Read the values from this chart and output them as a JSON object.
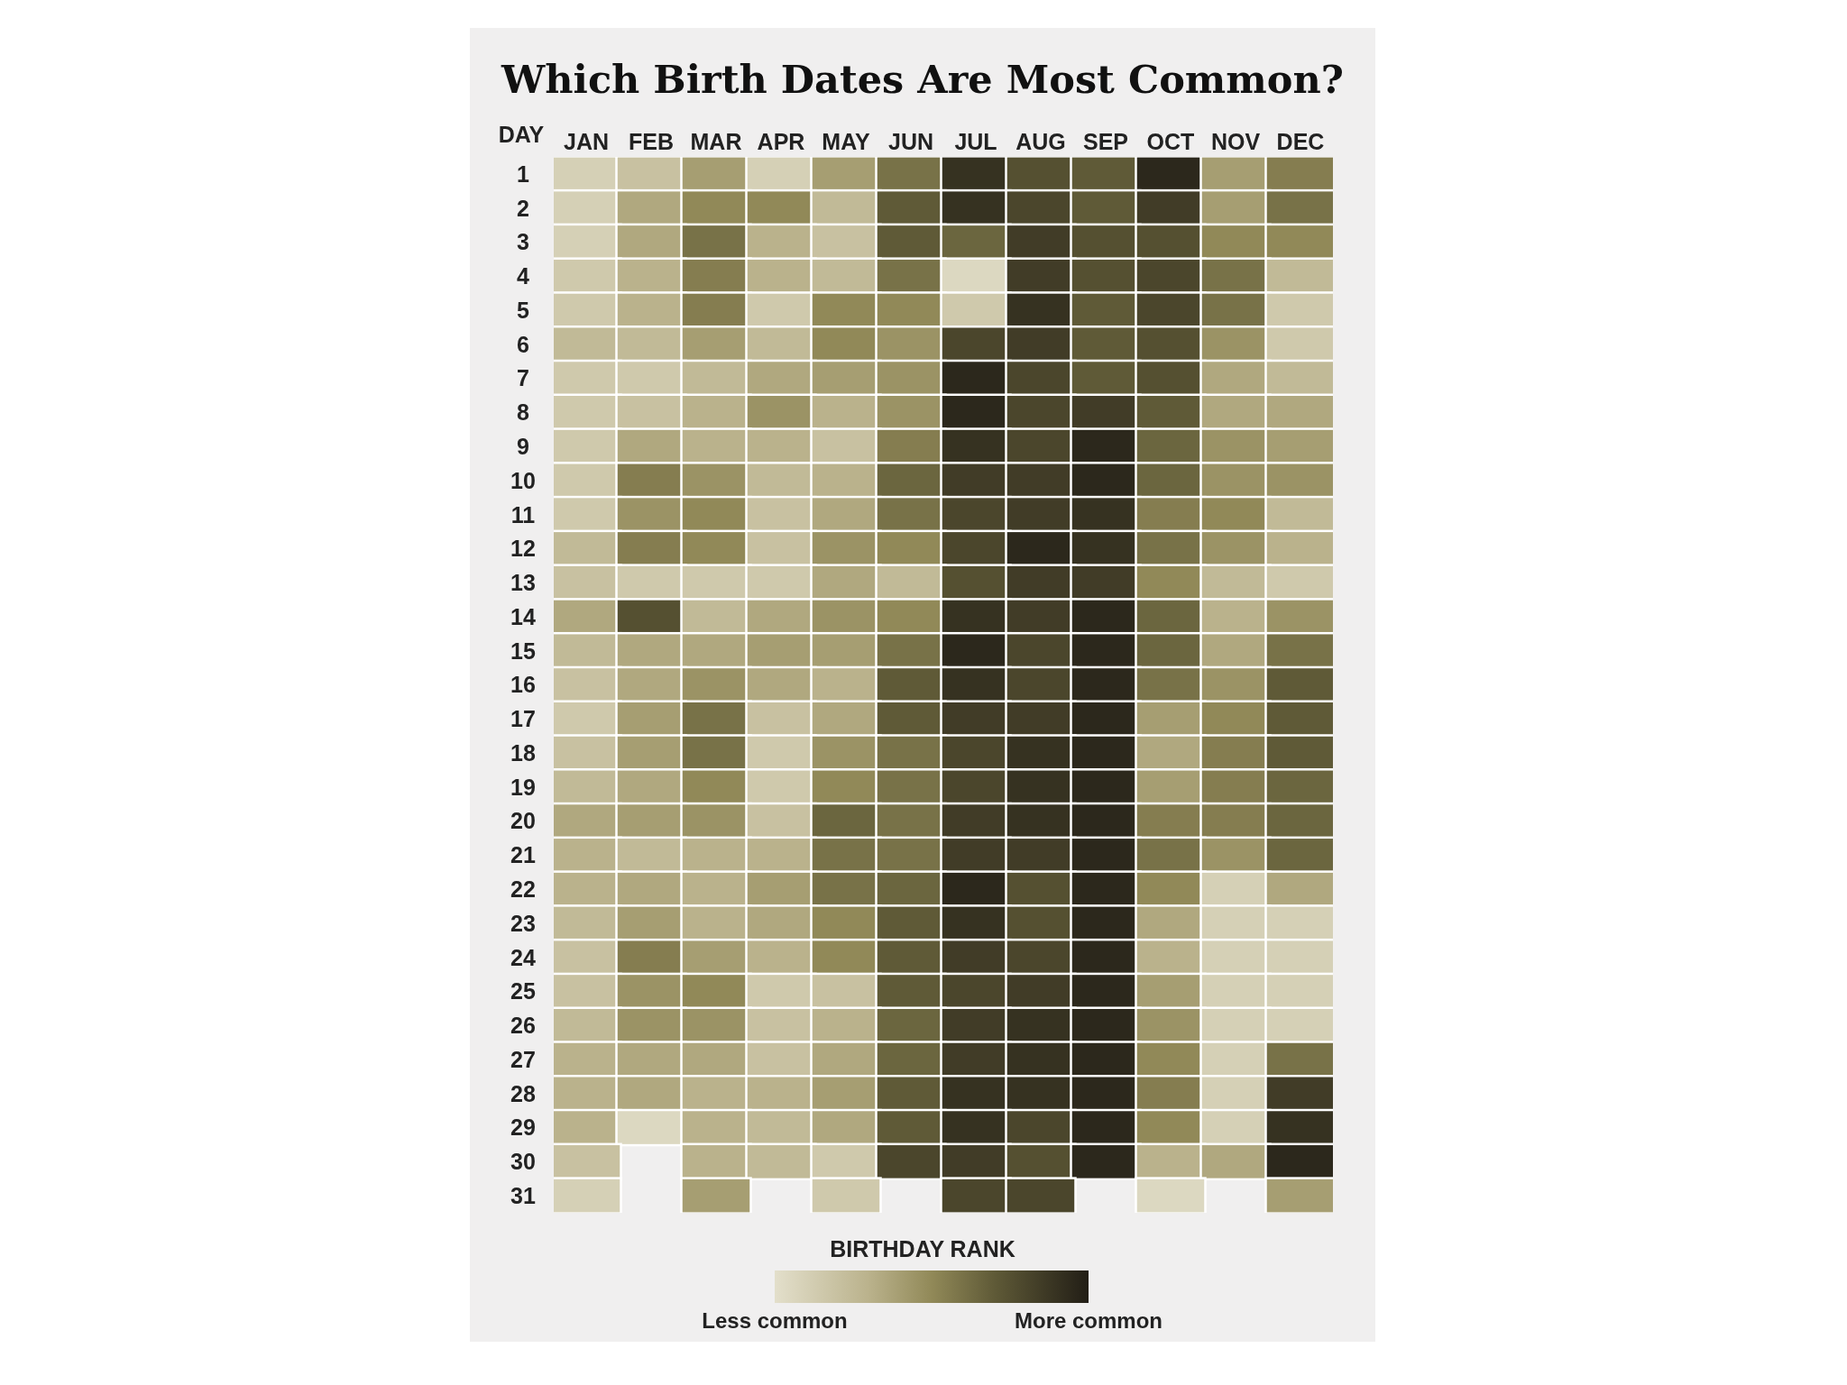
{
  "chart_data": {
    "type": "heatmap",
    "title": "Which Birth Dates Are Most Common?",
    "ylabel": "DAY",
    "clabel": "BIRTHDAY RANK",
    "categories": [
      "JAN",
      "FEB",
      "MAR",
      "APR",
      "MAY",
      "JUN",
      "JUL",
      "AUG",
      "SEP",
      "OCT",
      "NOV",
      "DEC"
    ],
    "y_categories": [
      "1",
      "2",
      "3",
      "4",
      "5",
      "6",
      "7",
      "8",
      "9",
      "10",
      "11",
      "12",
      "13",
      "14",
      "15",
      "16",
      "17",
      "18",
      "19",
      "20",
      "21",
      "22",
      "23",
      "24",
      "25",
      "26",
      "27",
      "28",
      "29",
      "30",
      "31"
    ],
    "clim": [
      0,
      1
    ],
    "cticks": [
      {
        "value": 0,
        "label": "Less common"
      },
      {
        "value": 1,
        "label": "More common"
      }
    ],
    "cells": [
      [
        0.1,
        0.2,
        0.4,
        0.1,
        0.4,
        0.6,
        0.9,
        0.75,
        0.7,
        0.95,
        0.4,
        0.55
      ],
      [
        0.1,
        0.35,
        0.5,
        0.5,
        0.25,
        0.7,
        0.9,
        0.8,
        0.7,
        0.85,
        0.4,
        0.6
      ],
      [
        0.1,
        0.35,
        0.6,
        0.3,
        0.2,
        0.7,
        0.65,
        0.85,
        0.75,
        0.75,
        0.5,
        0.5
      ],
      [
        0.15,
        0.3,
        0.55,
        0.3,
        0.25,
        0.6,
        0.05,
        0.85,
        0.75,
        0.8,
        0.6,
        0.25
      ],
      [
        0.15,
        0.3,
        0.55,
        0.15,
        0.5,
        0.5,
        0.15,
        0.9,
        0.7,
        0.8,
        0.6,
        0.15
      ],
      [
        0.25,
        0.25,
        0.4,
        0.25,
        0.5,
        0.45,
        0.8,
        0.85,
        0.7,
        0.75,
        0.45,
        0.15
      ],
      [
        0.15,
        0.15,
        0.25,
        0.35,
        0.4,
        0.45,
        0.95,
        0.8,
        0.7,
        0.75,
        0.35,
        0.25
      ],
      [
        0.15,
        0.2,
        0.3,
        0.45,
        0.3,
        0.45,
        0.95,
        0.8,
        0.85,
        0.7,
        0.35,
        0.35
      ],
      [
        0.15,
        0.35,
        0.3,
        0.3,
        0.2,
        0.55,
        0.9,
        0.8,
        0.95,
        0.65,
        0.45,
        0.4
      ],
      [
        0.15,
        0.55,
        0.45,
        0.25,
        0.3,
        0.65,
        0.85,
        0.85,
        0.95,
        0.65,
        0.45,
        0.45
      ],
      [
        0.15,
        0.45,
        0.5,
        0.2,
        0.35,
        0.6,
        0.8,
        0.85,
        0.9,
        0.55,
        0.5,
        0.25
      ],
      [
        0.25,
        0.55,
        0.5,
        0.2,
        0.45,
        0.5,
        0.8,
        0.95,
        0.9,
        0.6,
        0.45,
        0.3
      ],
      [
        0.2,
        0.15,
        0.15,
        0.15,
        0.35,
        0.25,
        0.75,
        0.85,
        0.85,
        0.5,
        0.25,
        0.15
      ],
      [
        0.35,
        0.75,
        0.25,
        0.35,
        0.45,
        0.5,
        0.9,
        0.85,
        0.95,
        0.65,
        0.3,
        0.45
      ],
      [
        0.25,
        0.35,
        0.35,
        0.4,
        0.4,
        0.6,
        0.95,
        0.8,
        0.95,
        0.65,
        0.35,
        0.6
      ],
      [
        0.2,
        0.35,
        0.45,
        0.35,
        0.3,
        0.7,
        0.9,
        0.8,
        0.95,
        0.6,
        0.45,
        0.7
      ],
      [
        0.15,
        0.4,
        0.6,
        0.2,
        0.35,
        0.7,
        0.85,
        0.85,
        0.95,
        0.4,
        0.5,
        0.7
      ],
      [
        0.2,
        0.4,
        0.6,
        0.15,
        0.45,
        0.6,
        0.8,
        0.9,
        0.95,
        0.35,
        0.55,
        0.7
      ],
      [
        0.25,
        0.35,
        0.5,
        0.15,
        0.5,
        0.6,
        0.8,
        0.9,
        0.95,
        0.4,
        0.55,
        0.65
      ],
      [
        0.35,
        0.4,
        0.45,
        0.2,
        0.65,
        0.6,
        0.85,
        0.9,
        0.95,
        0.55,
        0.55,
        0.65
      ],
      [
        0.3,
        0.25,
        0.3,
        0.3,
        0.6,
        0.6,
        0.85,
        0.85,
        0.95,
        0.6,
        0.45,
        0.65
      ],
      [
        0.3,
        0.35,
        0.3,
        0.4,
        0.6,
        0.65,
        0.95,
        0.75,
        0.95,
        0.5,
        0.1,
        0.35
      ],
      [
        0.25,
        0.4,
        0.3,
        0.35,
        0.5,
        0.7,
        0.9,
        0.75,
        0.95,
        0.35,
        0.1,
        0.1
      ],
      [
        0.2,
        0.55,
        0.4,
        0.3,
        0.5,
        0.7,
        0.85,
        0.8,
        0.95,
        0.3,
        0.1,
        0.1
      ],
      [
        0.2,
        0.45,
        0.5,
        0.15,
        0.2,
        0.7,
        0.8,
        0.85,
        0.95,
        0.4,
        0.1,
        0.1
      ],
      [
        0.25,
        0.45,
        0.45,
        0.2,
        0.3,
        0.65,
        0.85,
        0.9,
        0.95,
        0.45,
        0.1,
        0.1
      ],
      [
        0.3,
        0.35,
        0.35,
        0.2,
        0.35,
        0.65,
        0.85,
        0.9,
        0.95,
        0.5,
        0.1,
        0.6
      ],
      [
        0.3,
        0.35,
        0.3,
        0.3,
        0.4,
        0.7,
        0.9,
        0.9,
        0.95,
        0.55,
        0.1,
        0.85
      ],
      [
        0.3,
        0.05,
        0.3,
        0.25,
        0.35,
        0.7,
        0.9,
        0.8,
        0.95,
        0.5,
        0.1,
        0.9
      ],
      [
        0.2,
        null,
        0.3,
        0.25,
        0.15,
        0.8,
        0.85,
        0.75,
        0.95,
        0.3,
        0.35,
        0.95
      ],
      [
        0.1,
        null,
        0.4,
        null,
        0.15,
        null,
        0.8,
        0.8,
        null,
        0.05,
        null,
        0.4
      ]
    ]
  }
}
